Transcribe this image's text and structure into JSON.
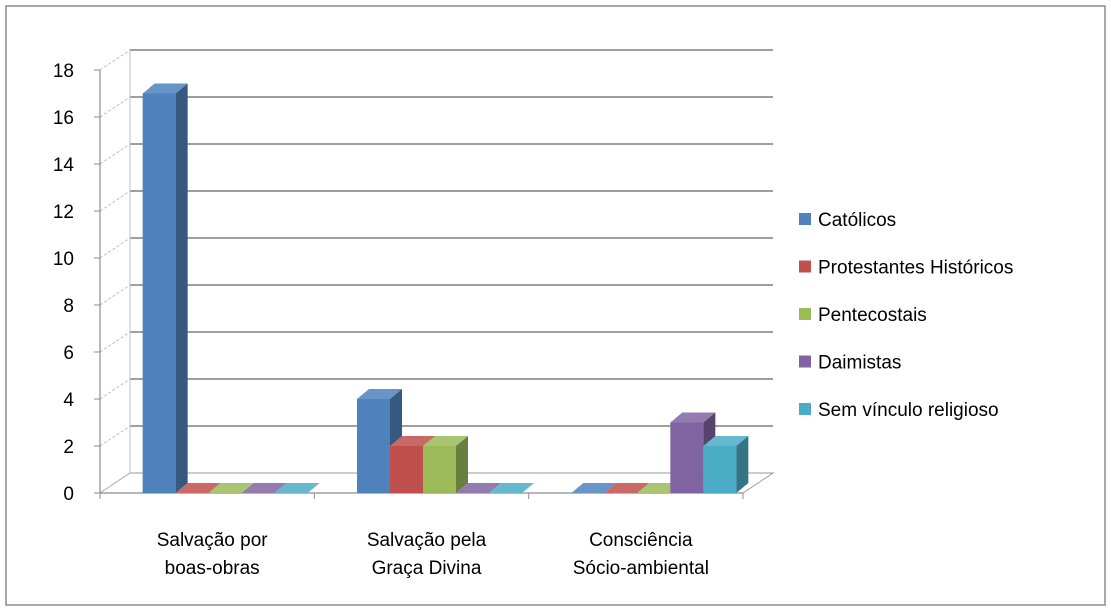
{
  "chart_data": {
    "type": "bar",
    "title": "",
    "xlabel": "",
    "ylabel": "",
    "ylim": [
      0,
      18
    ],
    "y_ticks": [
      "0",
      "2",
      "4",
      "6",
      "8",
      "10",
      "12",
      "14",
      "16",
      "18"
    ],
    "grid": true,
    "legend_position": "right",
    "categories": [
      [
        "Salvação por",
        "boas-obras"
      ],
      [
        "Salvação pela",
        "Graça Divina"
      ],
      [
        "Consciência",
        "Sócio-ambiental"
      ]
    ],
    "series": [
      {
        "name": "Católicos",
        "color": "#4F81BD",
        "values": [
          17,
          4,
          0
        ]
      },
      {
        "name": "Protestantes Históricos",
        "color": "#C0504D",
        "values": [
          0,
          2,
          0
        ]
      },
      {
        "name": "Pentecostais",
        "color": "#9BBB59",
        "values": [
          0,
          2,
          0
        ]
      },
      {
        "name": "Daimistas",
        "color": "#8064A2",
        "values": [
          0,
          0,
          3
        ]
      },
      {
        "name": "Sem vínculo religioso",
        "color": "#4BACC6",
        "values": [
          0,
          0,
          2
        ]
      }
    ]
  }
}
